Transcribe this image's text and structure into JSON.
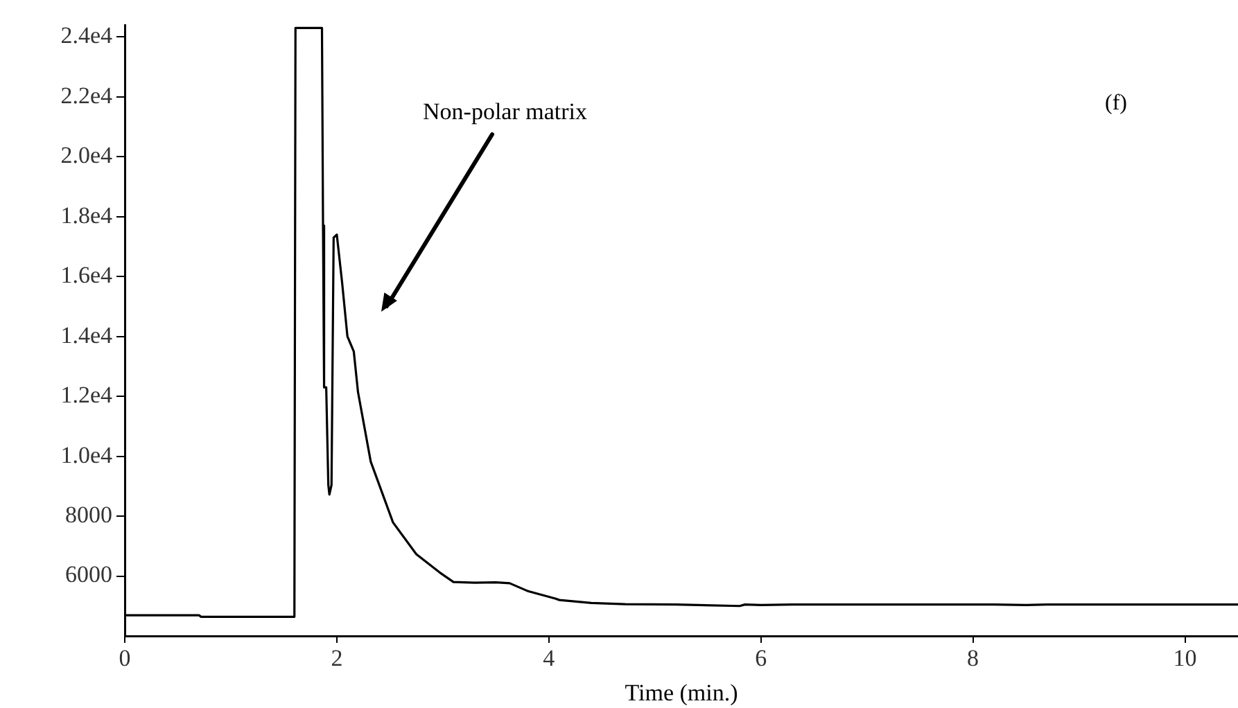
{
  "chart_data": {
    "type": "line",
    "xlabel": "Time (min.)",
    "x": [
      0,
      0.7,
      0.72,
      1.6,
      1.61,
      1.86,
      1.87,
      1.88,
      1.9,
      1.92,
      1.93,
      1.95,
      1.97,
      2.0,
      2.05,
      2.1,
      2.16,
      2.2,
      2.32,
      2.53,
      2.75,
      2.97,
      3.1,
      3.3,
      3.5,
      3.63,
      3.8,
      4.06,
      4.1,
      4.4,
      4.72,
      5.2,
      5.8,
      5.85,
      6.0,
      6.3,
      7.0,
      8.2,
      8.5,
      8.7,
      9.5,
      10.5
    ],
    "series": [
      {
        "color": "#000000",
        "values": [
          4690,
          4690,
          4640,
          4640,
          24300,
          24300,
          17700,
          12300,
          12300,
          9040,
          8720,
          9040,
          17300,
          17400,
          15800,
          14000,
          13500,
          12140,
          9820,
          7790,
          6730,
          6120,
          5800,
          5780,
          5790,
          5760,
          5500,
          5250,
          5200,
          5100,
          5060,
          5050,
          5000,
          5050,
          5030,
          5050,
          5050,
          5050,
          5030,
          5050,
          5050,
          5050
        ]
      }
    ],
    "xlim": [
      0,
      10.5
    ],
    "xticks": [
      0,
      2,
      4,
      6,
      8,
      10
    ],
    "ylim": [
      4000,
      24400
    ],
    "yticks": [
      6000,
      8000,
      {
        "value": 10000,
        "label": "1.0e4"
      },
      {
        "value": 12000,
        "label": "1.2e4"
      },
      {
        "value": 14000,
        "label": "1.4e4"
      },
      {
        "value": 16000,
        "label": "1.6e4"
      },
      {
        "value": 18000,
        "label": "1.8e4"
      },
      {
        "value": 20000,
        "label": "2.0e4"
      },
      {
        "value": 22000,
        "label": "2.2e4"
      },
      {
        "value": 24000,
        "label": "2.4e4"
      }
    ],
    "grid": false,
    "legend": false,
    "marker": "none",
    "line_style": "solid",
    "annotations": [
      "Non-polar matrix",
      "(f)"
    ]
  }
}
